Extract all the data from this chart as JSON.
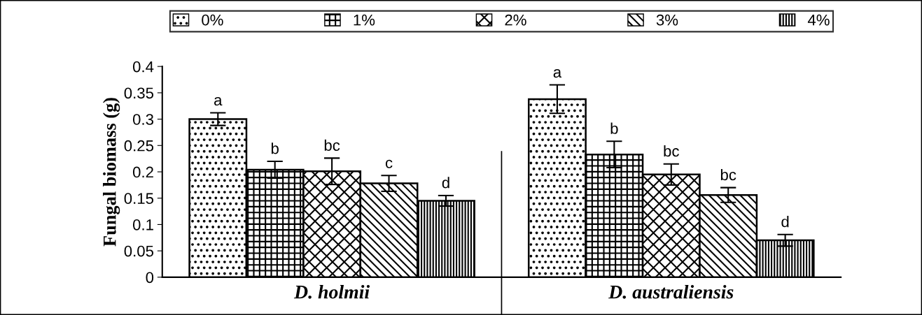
{
  "chart_data": {
    "type": "bar",
    "categories": [
      "D. holmii",
      "D. australiensis"
    ],
    "ylabel": "Fungal biomass (g)",
    "series": [
      {
        "name": "0%",
        "color": "#000000",
        "values": [
          0.3,
          0.338
        ],
        "errors": [
          0.012,
          0.027
        ],
        "value_labels": [
          "a",
          "a"
        ]
      },
      {
        "name": "1%",
        "color": "#000000",
        "values": [
          0.204,
          0.233
        ],
        "errors": [
          0.016,
          0.025
        ],
        "value_labels": [
          "b",
          "b"
        ]
      },
      {
        "name": "2%",
        "color": "#000000",
        "values": [
          0.201,
          0.195
        ],
        "errors": [
          0.025,
          0.02
        ],
        "value_labels": [
          "bc",
          "bc"
        ]
      },
      {
        "name": "3%",
        "color": "#000000",
        "values": [
          0.178,
          0.156
        ],
        "errors": [
          0.015,
          0.014
        ],
        "value_labels": [
          "c",
          "bc"
        ]
      },
      {
        "name": "4%",
        "color": "#000000",
        "values": [
          0.145,
          0.07
        ],
        "errors": [
          0.01,
          0.011
        ],
        "value_labels": [
          "d",
          "d"
        ]
      }
    ],
    "ylim": [
      0,
      0.4
    ],
    "yticks": [
      0,
      0.05,
      0.1,
      0.15,
      0.2,
      0.25,
      0.3,
      0.35,
      0.4
    ],
    "grid": false,
    "legend": "top"
  }
}
